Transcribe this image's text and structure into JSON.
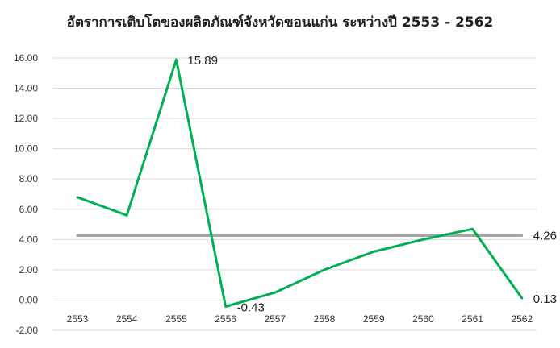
{
  "chart_data": {
    "type": "line",
    "title": "อัตราการเติบโตของผลิตภัณฑ์จังหวัดขอนแก่น ระหว่างปี 2553 - 2562",
    "xlabel": "",
    "ylabel": "",
    "categories": [
      "2553",
      "2554",
      "2555",
      "2556",
      "2557",
      "2558",
      "2559",
      "2560",
      "2561",
      "2562"
    ],
    "series": [
      {
        "color": "#00b050",
        "values": [
          6.8,
          5.6,
          15.89,
          -0.43,
          0.5,
          2.0,
          3.2,
          4.0,
          4.7,
          0.13
        ],
        "labels": {
          "2": "15.89",
          "3": "-0.43",
          "9": "0.13"
        }
      },
      {
        "color": "#a6a6a6",
        "values": [
          4.26,
          4.26,
          4.26,
          4.26,
          4.26,
          4.26,
          4.26,
          4.26,
          4.26,
          4.26
        ],
        "labels": {
          "9": "4.26"
        }
      }
    ],
    "y_ticks": [
      "16.00",
      "14.00",
      "12.00",
      "10.00",
      "8.00",
      "6.00",
      "4.00",
      "2.00",
      "0.00",
      "-2.00"
    ],
    "ylim": [
      -2,
      16
    ],
    "grid": true,
    "legend": "none"
  }
}
